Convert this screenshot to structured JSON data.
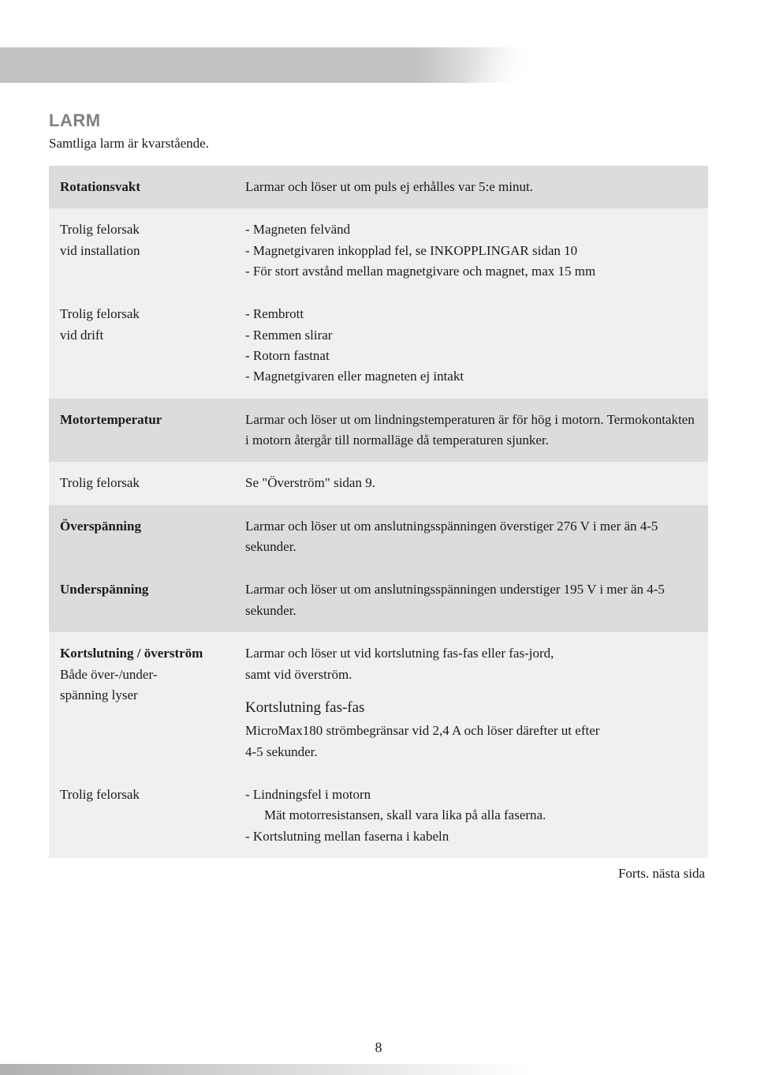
{
  "page": {
    "title": "LARM",
    "subtitle": "Samtliga larm är kvarstående.",
    "continuation": "Forts. nästa sida",
    "number": "8"
  },
  "rows": [
    {
      "shade": "shaded",
      "left_bold": "Rotationsvakt",
      "right": "Larmar och löser ut om puls ej erhålles var 5:e minut."
    },
    {
      "shade": "light",
      "left_l1": "Trolig felorsak",
      "left_l2": "vid installation",
      "right_l1": "- Magneten felvänd",
      "right_l2": "- Magnetgivaren inkopplad fel, se INKOPPLINGAR sidan 10",
      "right_l3": "- För stort avstånd mellan magnetgivare och magnet, max 15 mm"
    },
    {
      "shade": "light",
      "left_l1": "Trolig felorsak",
      "left_l2": "vid drift",
      "right_l1": "- Rembrott",
      "right_l2": "- Remmen slirar",
      "right_l3": "- Rotorn fastnat",
      "right_l4": "- Magnetgivaren eller magneten ej intakt"
    },
    {
      "shade": "shaded",
      "left_bold": "Motortemperatur",
      "right": "Larmar och löser ut om lindningstemperaturen är för hög i motorn. Termokontakten i motorn återgår till normalläge då temperaturen sjunker."
    },
    {
      "shade": "light",
      "left": "Trolig felorsak",
      "right": "Se \"Överström\" sidan 9."
    },
    {
      "shade": "shaded",
      "left_bold": "Överspänning",
      "right": "Larmar och löser ut om anslutningsspänningen överstiger 276 V i mer än 4-5 sekunder."
    },
    {
      "shade": "shaded",
      "left_bold": "Underspänning",
      "right": "Larmar och löser ut om anslutningsspänningen understiger 195 V i mer än 4-5 sekunder."
    },
    {
      "shade": "light",
      "left_bold": "Kortslutning / överström",
      "left_l2": "Både över-/under-",
      "left_l3": "spänning lyser",
      "right_l1": "Larmar och löser ut vid kortslutning fas-fas eller fas-jord,",
      "right_l2": "samt vid överström.",
      "sub_heading": "Kortslutning fas-fas",
      "sub_l1": "MicroMax180 strömbegränsar vid 2,4 A och löser därefter ut efter",
      "sub_l2": "4-5 sekunder."
    },
    {
      "shade": "light",
      "left": "Trolig felorsak",
      "right_l1": "- Lindningsfel i motorn",
      "right_indent": "Mät motorresistansen, skall vara lika på alla faserna.",
      "right_l2": "- Kortslutning mellan faserna i kabeln"
    }
  ]
}
